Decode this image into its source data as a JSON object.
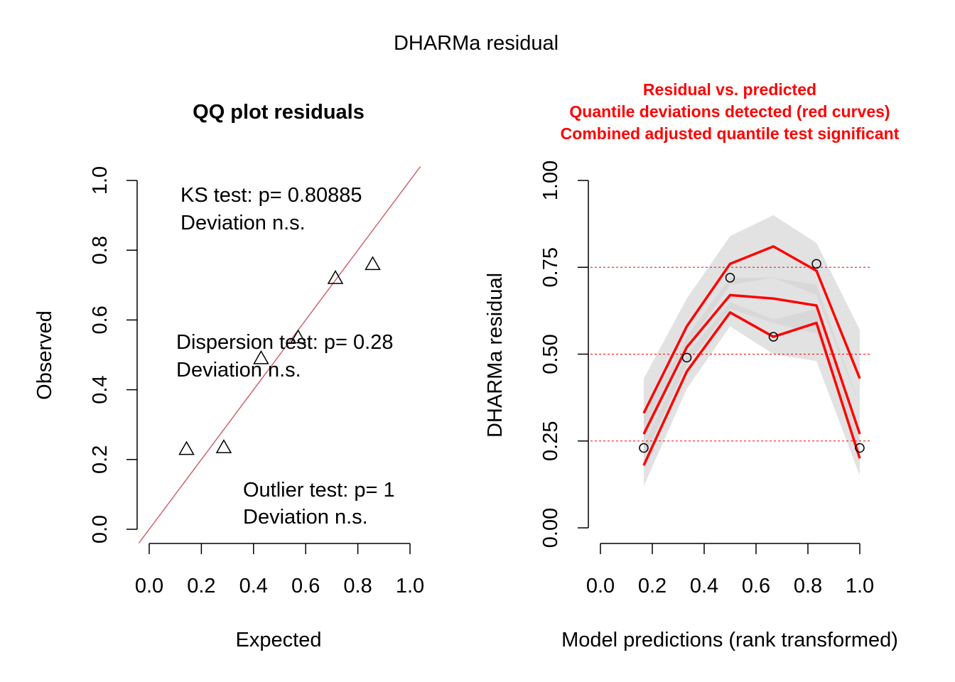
{
  "figure": {
    "title": "DHARMa residual"
  },
  "chart_data": [
    {
      "type": "scatter",
      "title": "QQ plot residuals",
      "xlabel": "Expected",
      "ylabel": "Observed",
      "xlim": [
        0,
        1
      ],
      "ylim": [
        0,
        1
      ],
      "x_ticks": [
        "0.0",
        "0.2",
        "0.4",
        "0.6",
        "0.8",
        "1.0"
      ],
      "y_ticks": [
        "0.0",
        "0.2",
        "0.4",
        "0.6",
        "0.8",
        "1.0"
      ],
      "marker": "triangle",
      "reference_line": "y = x",
      "reference_line_color": "#cd4f5c",
      "points": [
        {
          "x": 0.143,
          "y": 0.23
        },
        {
          "x": 0.286,
          "y": 0.235
        },
        {
          "x": 0.429,
          "y": 0.49
        },
        {
          "x": 0.571,
          "y": 0.55
        },
        {
          "x": 0.714,
          "y": 0.72
        },
        {
          "x": 0.857,
          "y": 0.76
        }
      ],
      "annotations": [
        {
          "line1": "KS test: p= 0.80885",
          "line2": "Deviation  n.s."
        },
        {
          "line1": "Dispersion test: p= 0.28",
          "line2": "Deviation  n.s."
        },
        {
          "line1": "Outlier test: p= 1",
          "line2": "Deviation  n.s."
        }
      ]
    },
    {
      "type": "scatter",
      "title_lines": [
        "Residual vs. predicted",
        "Quantile deviations detected (red curves)",
        "Combined adjusted quantile test significant"
      ],
      "title_color": "#ff0000",
      "xlabel": "Model predictions (rank transformed)",
      "ylabel": "DHARMa residual",
      "xlim": [
        0,
        1
      ],
      "ylim": [
        0,
        1
      ],
      "x_ticks": [
        "0.0",
        "0.2",
        "0.4",
        "0.6",
        "0.8",
        "1.0"
      ],
      "y_ticks": [
        "0.00",
        "0.25",
        "0.50",
        "0.75",
        "1.00"
      ],
      "marker": "circle",
      "reference_lines": [
        0.25,
        0.5,
        0.75
      ],
      "reference_line_color": "#ff0000",
      "curve_color": "#ff0000",
      "x": [
        0.167,
        0.333,
        0.5,
        0.667,
        0.833,
        1.0
      ],
      "points_y": [
        0.23,
        0.49,
        0.72,
        0.55,
        0.76,
        0.23
      ],
      "quantile_curves": [
        {
          "values": [
            0.18,
            0.45,
            0.62,
            0.55,
            0.59,
            0.2
          ]
        },
        {
          "values": [
            0.27,
            0.52,
            0.67,
            0.66,
            0.64,
            0.27
          ]
        },
        {
          "values": [
            0.33,
            0.58,
            0.76,
            0.81,
            0.74,
            0.43
          ]
        }
      ],
      "bands": [
        {
          "lower": [
            0.12,
            0.4,
            0.58,
            0.5,
            0.48,
            0.15
          ],
          "upper": [
            0.24,
            0.5,
            0.65,
            0.6,
            0.63,
            0.25
          ],
          "color": "#d3d3d3"
        },
        {
          "lower": [
            0.2,
            0.47,
            0.63,
            0.59,
            0.56,
            0.22
          ],
          "upper": [
            0.32,
            0.55,
            0.72,
            0.72,
            0.7,
            0.35
          ],
          "color": "#d3d3d3"
        },
        {
          "lower": [
            0.25,
            0.52,
            0.7,
            0.72,
            0.67,
            0.35
          ],
          "upper": [
            0.43,
            0.66,
            0.84,
            0.9,
            0.82,
            0.57
          ],
          "color": "#d3d3d3"
        }
      ]
    }
  ]
}
